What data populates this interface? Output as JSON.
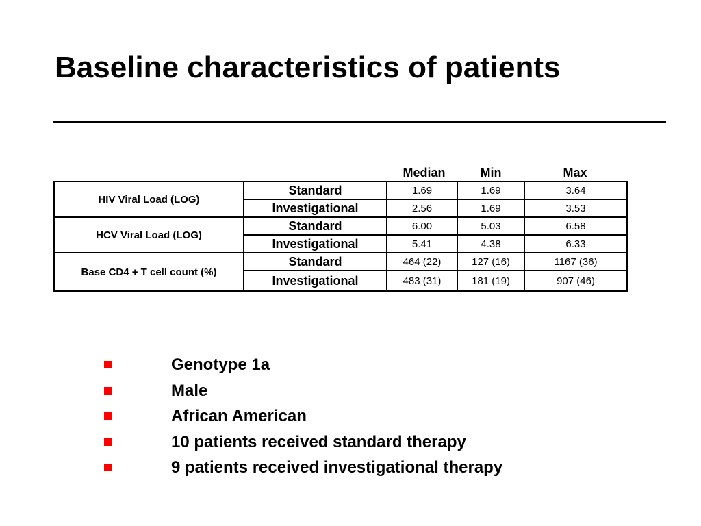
{
  "slide": {
    "title": "Baseline characteristics of patients"
  },
  "table": {
    "columns": [
      "Median",
      "Min",
      "Max"
    ],
    "rows": [
      {
        "label": "HIV Viral Load (LOG)",
        "arms": [
          {
            "arm": "Standard",
            "median": "1.69",
            "min": "1.69",
            "max": "3.64"
          },
          {
            "arm": "Investigational",
            "median": "2.56",
            "min": "1.69",
            "max": "3.53"
          }
        ]
      },
      {
        "label": "HCV Viral Load (LOG)",
        "arms": [
          {
            "arm": "Standard",
            "median": "6.00",
            "min": "5.03",
            "max": "6.58"
          },
          {
            "arm": "Investigational",
            "median": "5.41",
            "min": "4.38",
            "max": "6.33"
          }
        ]
      },
      {
        "label": "Base CD4 + T cell count (%)",
        "arms": [
          {
            "arm": "Standard",
            "median": "464 (22)",
            "min": "127 (16)",
            "max": "1167 (36)"
          },
          {
            "arm": "Investigational",
            "median": "483 (31)",
            "min": "181 (19)",
            "max": "907 (46)"
          }
        ]
      }
    ]
  },
  "bullets": [
    "Genotype 1a",
    "Male",
    "African American",
    "10 patients received standard therapy",
    "9 patients received investigational therapy"
  ],
  "colors": {
    "bullet": "#ff0000",
    "text": "#000000",
    "background": "#ffffff"
  }
}
